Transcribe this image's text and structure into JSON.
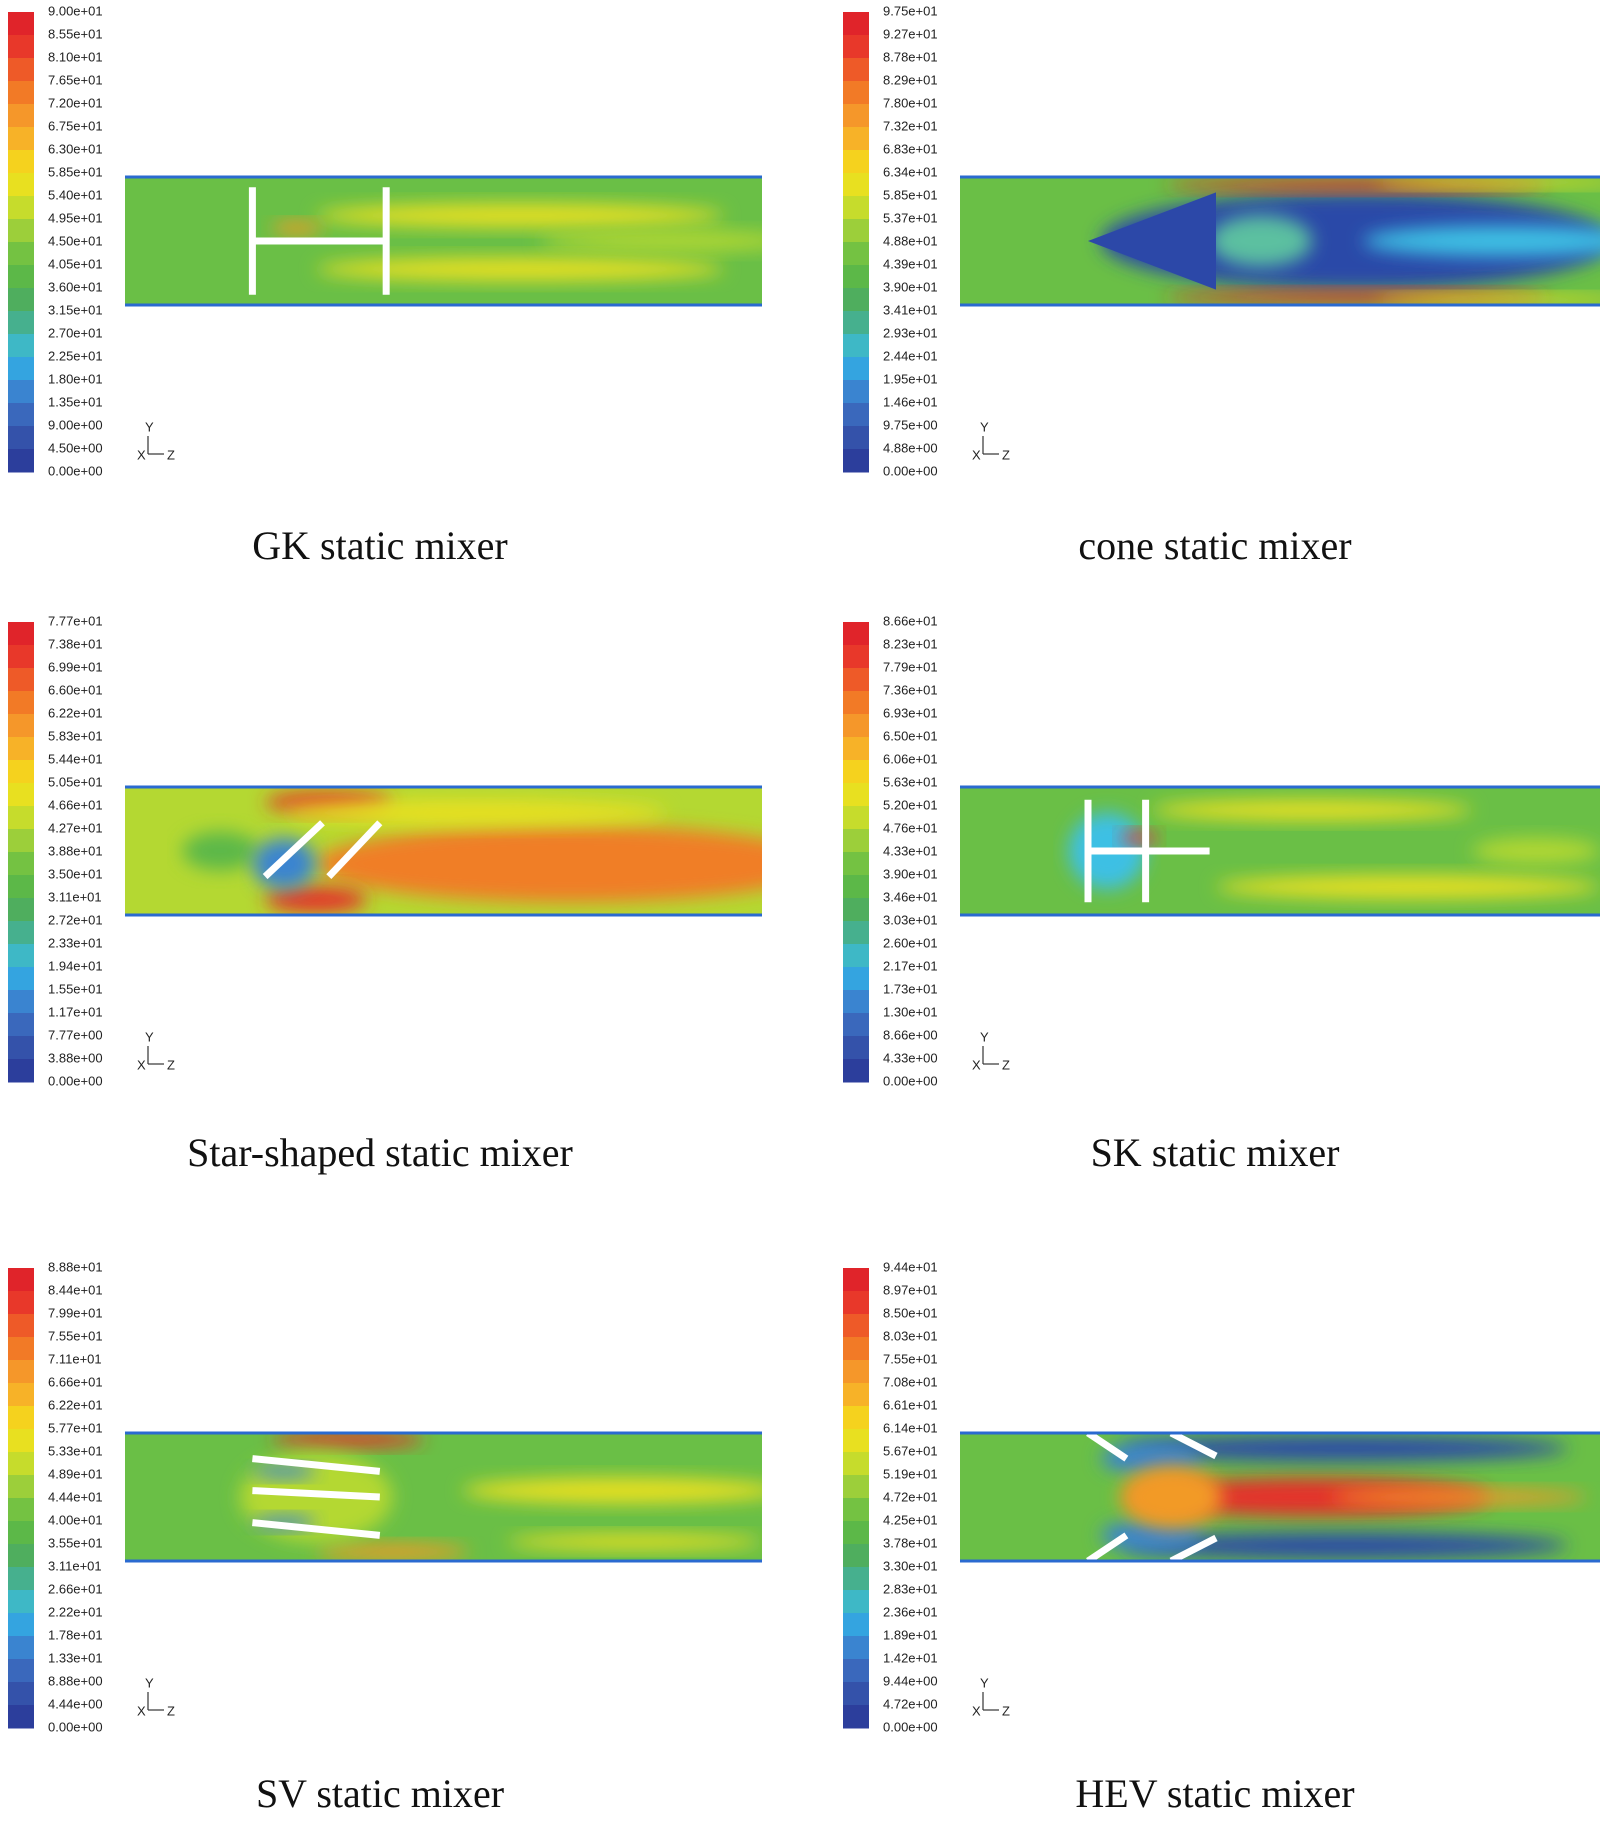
{
  "panels": [
    {
      "title": "GK static mixer",
      "axis": {
        "y": "Y",
        "x": "X",
        "z": "Z"
      },
      "colorbar_labels": [
        "9.00e+01",
        "8.55e+01",
        "8.10e+01",
        "7.65e+01",
        "7.20e+01",
        "6.75e+01",
        "6.30e+01",
        "5.85e+01",
        "5.40e+01",
        "4.95e+01",
        "4.50e+01",
        "4.05e+01",
        "3.60e+01",
        "3.15e+01",
        "2.70e+01",
        "2.25e+01",
        "1.80e+01",
        "1.35e+01",
        "9.00e+00",
        "4.50e+00",
        "0.00e+00"
      ]
    },
    {
      "title": "cone static mixer",
      "axis": {
        "y": "Y",
        "x": "X",
        "z": "Z"
      },
      "colorbar_labels": [
        "9.75e+01",
        "9.27e+01",
        "8.78e+01",
        "8.29e+01",
        "7.80e+01",
        "7.32e+01",
        "6.83e+01",
        "6.34e+01",
        "5.85e+01",
        "5.37e+01",
        "4.88e+01",
        "4.39e+01",
        "3.90e+01",
        "3.41e+01",
        "2.93e+01",
        "2.44e+01",
        "1.95e+01",
        "1.46e+01",
        "9.75e+00",
        "4.88e+00",
        "0.00e+00"
      ]
    },
    {
      "title": "Star-shaped static mixer",
      "axis": {
        "y": "Y",
        "x": "X",
        "z": "Z"
      },
      "colorbar_labels": [
        "7.77e+01",
        "7.38e+01",
        "6.99e+01",
        "6.60e+01",
        "6.22e+01",
        "5.83e+01",
        "5.44e+01",
        "5.05e+01",
        "4.66e+01",
        "4.27e+01",
        "3.88e+01",
        "3.50e+01",
        "3.11e+01",
        "2.72e+01",
        "2.33e+01",
        "1.94e+01",
        "1.55e+01",
        "1.17e+01",
        "7.77e+00",
        "3.88e+00",
        "0.00e+00"
      ]
    },
    {
      "title": "SK static mixer",
      "axis": {
        "y": "Y",
        "x": "X",
        "z": "Z"
      },
      "colorbar_labels": [
        "8.66e+01",
        "8.23e+01",
        "7.79e+01",
        "7.36e+01",
        "6.93e+01",
        "6.50e+01",
        "6.06e+01",
        "5.63e+01",
        "5.20e+01",
        "4.76e+01",
        "4.33e+01",
        "3.90e+01",
        "3.46e+01",
        "3.03e+01",
        "2.60e+01",
        "2.17e+01",
        "1.73e+01",
        "1.30e+01",
        "8.66e+00",
        "4.33e+00",
        "0.00e+00"
      ]
    },
    {
      "title": "SV static mixer",
      "axis": {
        "y": "Y",
        "x": "X",
        "z": "Z"
      },
      "colorbar_labels": [
        "8.88e+01",
        "8.44e+01",
        "7.99e+01",
        "7.55e+01",
        "7.11e+01",
        "6.66e+01",
        "6.22e+01",
        "5.77e+01",
        "5.33e+01",
        "4.89e+01",
        "4.44e+01",
        "4.00e+01",
        "3.55e+01",
        "3.11e+01",
        "2.66e+01",
        "2.22e+01",
        "1.78e+01",
        "1.33e+01",
        "8.88e+00",
        "4.44e+00",
        "0.00e+00"
      ]
    },
    {
      "title": "HEV static mixer",
      "axis": {
        "y": "Y",
        "x": "X",
        "z": "Z"
      },
      "colorbar_labels": [
        "9.44e+01",
        "8.97e+01",
        "8.50e+01",
        "8.03e+01",
        "7.55e+01",
        "7.08e+01",
        "6.61e+01",
        "6.14e+01",
        "5.67e+01",
        "5.19e+01",
        "4.72e+01",
        "4.25e+01",
        "3.78e+01",
        "3.30e+01",
        "2.83e+01",
        "2.36e+01",
        "1.89e+01",
        "1.42e+01",
        "9.44e+00",
        "4.72e+00",
        "0.00e+00"
      ]
    }
  ]
}
